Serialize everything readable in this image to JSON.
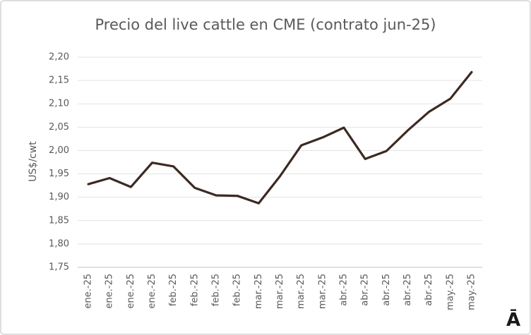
{
  "chart_data": {
    "type": "line",
    "title": "Precio del live cattle en CME (contrato jun-25)",
    "y_label": "US$/cwt",
    "logo": "Ā",
    "categories": [
      "ene.-25",
      "ene.-25",
      "ene.-25",
      "ene.-25",
      "feb.-25",
      "feb.-25",
      "feb.-25",
      "feb.-25",
      "mar.-25",
      "mar.-25",
      "mar.-25",
      "mar.-25",
      "abr.-25",
      "abr.-25",
      "abr.-25",
      "abr.-25",
      "abr.-25",
      "may.-25",
      "may.-25"
    ],
    "series": [
      {
        "name": "Live cattle jun-25",
        "color": "#3b2a22",
        "values": [
          1.928,
          1.941,
          1.922,
          1.974,
          1.966,
          1.92,
          1.904,
          1.903,
          1.887,
          1.945,
          2.011,
          2.028,
          2.049,
          1.982,
          1.999,
          2.043,
          2.083,
          2.111,
          2.168
        ]
      }
    ],
    "ylim": [
      1.75,
      2.2
    ],
    "yticks": [
      {
        "value": 1.75,
        "label": "1,75"
      },
      {
        "value": 1.8,
        "label": "1,80"
      },
      {
        "value": 1.85,
        "label": "1,85"
      },
      {
        "value": 1.9,
        "label": "1,90"
      },
      {
        "value": 1.95,
        "label": "1,95"
      },
      {
        "value": 2.0,
        "label": "2,00"
      },
      {
        "value": 2.05,
        "label": "2,05"
      },
      {
        "value": 2.1,
        "label": "2,10"
      },
      {
        "value": 2.15,
        "label": "2,15"
      },
      {
        "value": 2.2,
        "label": "2,20"
      }
    ],
    "grid": true
  }
}
